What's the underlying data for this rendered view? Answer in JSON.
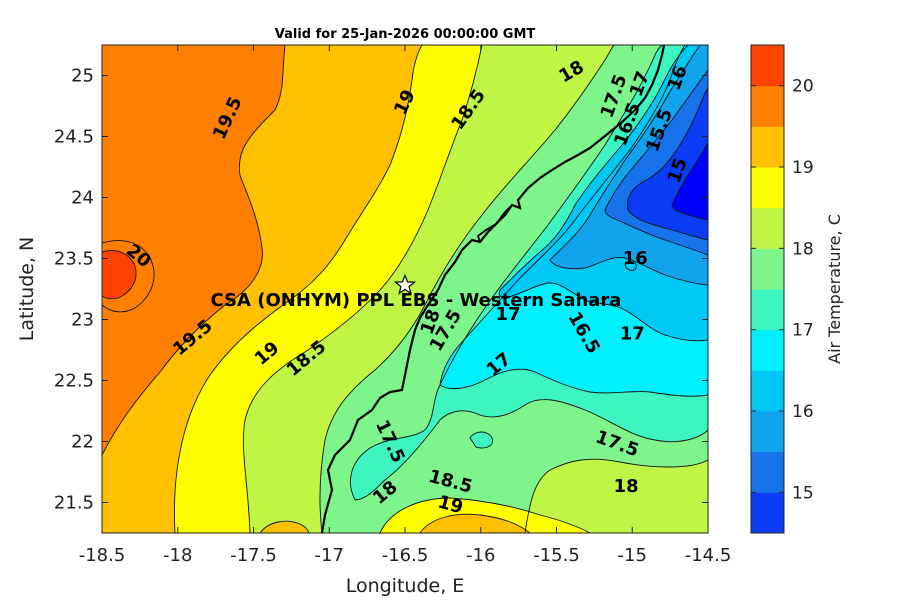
{
  "title": "Valid for 25-Jan-2026 00:00:00 GMT",
  "xlabel": "Longitude, E",
  "ylabel": "Latitude, N",
  "colorbar_label": "Air Temperature, C",
  "site_label": "CSA (ONHYM) PPL EBS - Western Sahara",
  "site_location": {
    "lon": -16.5,
    "lat": 23.28
  },
  "chart_data": {
    "type": "heatmap",
    "title": "Valid for 25-Jan-2026 00:00:00 GMT",
    "xlabel": "Longitude, E",
    "ylabel": "Latitude, N",
    "xlim": [
      -18.5,
      -14.5
    ],
    "ylim": [
      21.25,
      25.25
    ],
    "xticks": [
      -18.5,
      -18,
      -17.5,
      -17,
      -16.5,
      -16,
      -15.5,
      -15,
      -14.5
    ],
    "xtick_labels": [
      "-18.5",
      "-18",
      "-17.5",
      "-17",
      "-16.5",
      "-16",
      "-15.5",
      "-15",
      "-14.5"
    ],
    "yticks": [
      21.5,
      22,
      22.5,
      23,
      23.5,
      24,
      24.5,
      25
    ],
    "ytick_labels": [
      "21.5",
      "22",
      "22.5",
      "23",
      "23.5",
      "24",
      "24.5",
      "25"
    ],
    "colorbar": {
      "label": "Air Temperature, C",
      "range": [
        14.5,
        20.5
      ],
      "levels": [
        14.5,
        15,
        15.5,
        16,
        16.5,
        17,
        17.5,
        18,
        18.5,
        19,
        19.5,
        20,
        20.5
      ],
      "colors": [
        "#0000ff",
        "#0b3df6",
        "#1673ec",
        "#11a4ec",
        "#00c8f4",
        "#00f0ff",
        "#3cf5c0",
        "#7ef58a",
        "#bff545",
        "#ffff00",
        "#ffc000",
        "#ff8000",
        "#ff4400",
        "#ff0000"
      ],
      "tick_values": [
        15,
        16,
        17,
        18,
        19,
        20
      ],
      "tick_labels": [
        "15",
        "16",
        "17",
        "18",
        "19",
        "20"
      ]
    },
    "contour_labels": [
      {
        "text": "19.5",
        "lon": -17.67,
        "lat": 24.65,
        "angle": -65
      },
      {
        "text": "19",
        "lon": -16.5,
        "lat": 24.78,
        "angle": -65
      },
      {
        "text": "18.5",
        "lon": -16.08,
        "lat": 24.72,
        "angle": -55
      },
      {
        "text": "18",
        "lon": -15.4,
        "lat": 25.03,
        "angle": -30
      },
      {
        "text": "17.5",
        "lon": -15.12,
        "lat": 24.83,
        "angle": -70
      },
      {
        "text": "17",
        "lon": -14.95,
        "lat": 24.93,
        "angle": -70
      },
      {
        "text": "16",
        "lon": -14.7,
        "lat": 24.98,
        "angle": -70
      },
      {
        "text": "16.5",
        "lon": -15.03,
        "lat": 24.6,
        "angle": -70
      },
      {
        "text": "15.5",
        "lon": -14.82,
        "lat": 24.55,
        "angle": -70
      },
      {
        "text": "15",
        "lon": -14.7,
        "lat": 24.22,
        "angle": -70
      },
      {
        "text": "20",
        "lon": -18.26,
        "lat": 23.52,
        "angle": 40
      },
      {
        "text": "16",
        "lon": -14.98,
        "lat": 23.5,
        "angle": 0
      },
      {
        "text": "18",
        "lon": -16.33,
        "lat": 22.98,
        "angle": -70
      },
      {
        "text": "17.5",
        "lon": -16.23,
        "lat": 22.91,
        "angle": -60
      },
      {
        "text": "17",
        "lon": -15.82,
        "lat": 23.04,
        "angle": 0
      },
      {
        "text": "16.5",
        "lon": -15.32,
        "lat": 22.89,
        "angle": 60
      },
      {
        "text": "17",
        "lon": -15.0,
        "lat": 22.88,
        "angle": 0
      },
      {
        "text": "17",
        "lon": -15.88,
        "lat": 22.63,
        "angle": -40
      },
      {
        "text": "19.5",
        "lon": -17.9,
        "lat": 22.85,
        "angle": -40
      },
      {
        "text": "19",
        "lon": -17.41,
        "lat": 22.72,
        "angle": -40
      },
      {
        "text": "18.5",
        "lon": -17.15,
        "lat": 22.68,
        "angle": -40
      },
      {
        "text": "17.5",
        "lon": -16.6,
        "lat": 22.0,
        "angle": 65
      },
      {
        "text": "17.5",
        "lon": -15.1,
        "lat": 21.98,
        "angle": 20
      },
      {
        "text": "18",
        "lon": -16.63,
        "lat": 21.58,
        "angle": -40
      },
      {
        "text": "18.5",
        "lon": -16.2,
        "lat": 21.67,
        "angle": 15
      },
      {
        "text": "19",
        "lon": -16.2,
        "lat": 21.48,
        "angle": 15
      },
      {
        "text": "18",
        "lon": -15.04,
        "lat": 21.63,
        "angle": 0
      }
    ]
  }
}
